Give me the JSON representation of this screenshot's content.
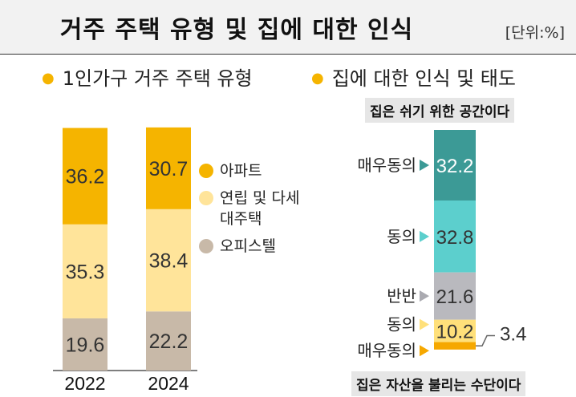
{
  "header": {
    "title": "거주 주택 유형 및 집에 대한 인식",
    "unit": "[단위:%]"
  },
  "left_section": {
    "title": "1인가구 거주 주택 유형"
  },
  "right_section": {
    "title": "집에 대한 인식 및 태도",
    "top_statement": "집은 쉬기 위한 공간이다",
    "bottom_statement": "집은 자산을 불리는 수단이다"
  },
  "colors": {
    "apartment": "#f5b400",
    "villa": "#ffe49a",
    "officetel": "#c8b9a8",
    "strongly_agree": "#3c9a96",
    "agree": "#5ccfcd",
    "neutral": "#b9b9be",
    "agree_asset": "#ffe07a",
    "strongly_agree_asset": "#f6a800"
  },
  "chart_data": [
    {
      "type": "bar",
      "stacked": true,
      "categories": [
        "2022",
        "2024"
      ],
      "series": [
        {
          "name": "아파트",
          "values": [
            36.2,
            30.7
          ]
        },
        {
          "name": "연립 및 다세대주택",
          "values": [
            35.3,
            38.4
          ]
        },
        {
          "name": "오피스텔",
          "values": [
            19.6,
            22.2
          ]
        }
      ],
      "legend": [
        "아파트",
        "연립 및 다세대주택",
        "오피스텔"
      ]
    },
    {
      "type": "bar",
      "stacked": true,
      "categories": [
        "매우동의",
        "동의",
        "반반",
        "동의",
        "매우동의"
      ],
      "values": [
        32.2,
        32.8,
        21.6,
        10.2,
        3.4
      ]
    }
  ]
}
